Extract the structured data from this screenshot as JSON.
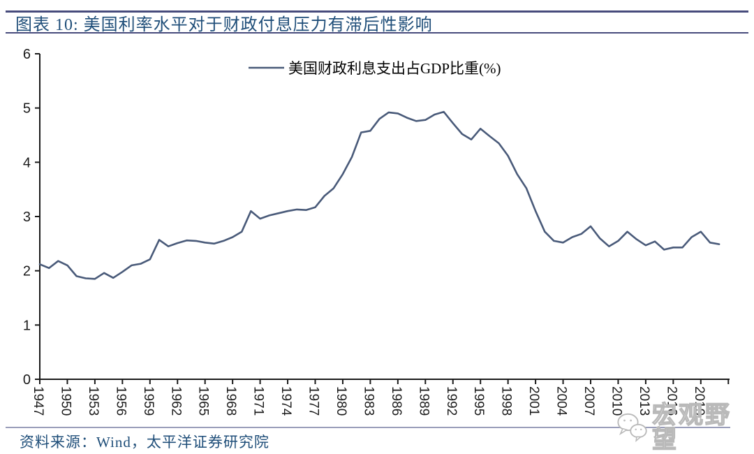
{
  "header": {
    "title": "图表 10:  美国利率水平对于财政付息压力有滞后性影响"
  },
  "chart_data": {
    "type": "line",
    "title": "美国利率水平对于财政付息压力有滞后性影响",
    "legend": "美国财政利息支出占GDP比重(%)",
    "legend_position": "top-center",
    "xlabel": "",
    "ylabel": "",
    "ylim": [
      0,
      6
    ],
    "yticks": [
      0,
      1,
      2,
      3,
      4,
      5,
      6
    ],
    "grid": false,
    "x_label_rotation": 90,
    "x_ticks_labeled": [
      1947,
      1950,
      1953,
      1956,
      1959,
      1962,
      1965,
      1968,
      1971,
      1974,
      1977,
      1980,
      1983,
      1986,
      1989,
      1992,
      1995,
      1998,
      2001,
      2004,
      2007,
      2010,
      2013,
      2016,
      2019
    ],
    "x_ticks_unlabeled": [
      2022
    ],
    "x": [
      1947,
      1948,
      1949,
      1950,
      1951,
      1952,
      1953,
      1954,
      1955,
      1956,
      1957,
      1958,
      1959,
      1960,
      1961,
      1962,
      1963,
      1964,
      1965,
      1966,
      1967,
      1968,
      1969,
      1970,
      1971,
      1972,
      1973,
      1974,
      1975,
      1976,
      1977,
      1978,
      1979,
      1980,
      1981,
      1982,
      1983,
      1984,
      1985,
      1986,
      1987,
      1988,
      1989,
      1990,
      1991,
      1992,
      1993,
      1994,
      1995,
      1996,
      1997,
      1998,
      1999,
      2000,
      2001,
      2002,
      2003,
      2004,
      2005,
      2006,
      2007,
      2008,
      2009,
      2010,
      2011,
      2012,
      2013,
      2014,
      2015,
      2016,
      2017,
      2018,
      2019,
      2020,
      2021
    ],
    "values": [
      2.12,
      2.05,
      2.18,
      2.1,
      1.9,
      1.86,
      1.85,
      1.96,
      1.87,
      1.98,
      2.1,
      2.13,
      2.21,
      2.57,
      2.45,
      2.51,
      2.56,
      2.55,
      2.52,
      2.5,
      2.55,
      2.62,
      2.72,
      3.1,
      2.96,
      3.02,
      3.06,
      3.1,
      3.13,
      3.12,
      3.17,
      3.38,
      3.52,
      3.78,
      4.1,
      4.55,
      4.58,
      4.8,
      4.92,
      4.9,
      4.82,
      4.76,
      4.78,
      4.88,
      4.93,
      4.72,
      4.52,
      4.42,
      4.62,
      4.48,
      4.35,
      4.12,
      3.78,
      3.52,
      3.1,
      2.72,
      2.55,
      2.52,
      2.62,
      2.68,
      2.82,
      2.6,
      2.45,
      2.55,
      2.72,
      2.58,
      2.47,
      2.54,
      2.39,
      2.43,
      2.43,
      2.62,
      2.72,
      2.52,
      2.49
    ]
  },
  "footer": {
    "source": "资料来源：Wind，太平洋证券研究院"
  },
  "watermark": {
    "icon": "wechat-icon",
    "text": "宏观野望"
  },
  "colors": {
    "series_line": "#495a79",
    "title_text": "#1f4e79",
    "title_rules": "#474b7c",
    "thin_rule": "#9a9eba",
    "source_text": "#1f4e79",
    "axis": "#1a1a1a",
    "watermark": "#b9b9b9",
    "background": "#ffffff"
  }
}
